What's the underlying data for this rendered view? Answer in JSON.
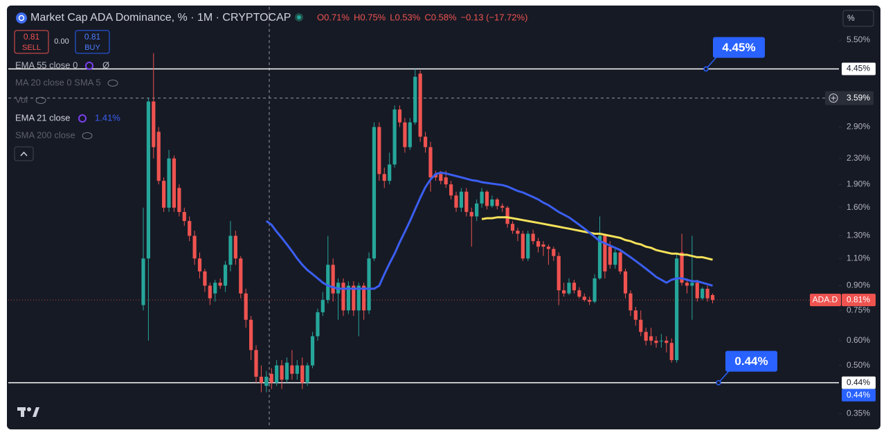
{
  "ui": {
    "sell_price": 0.81,
    "sell_label": "SELL",
    "spread": "0.00",
    "buy_price": 0.81,
    "buy_label": "BUY",
    "scale_mode": "%"
  },
  "chart_data": {
    "type": "candlestick",
    "title": "Market Cap ADA Dominance, % · 1M · CRYPTOCAP",
    "ohlc_legend": [
      "O0.71%",
      "H0.75%",
      "L0.53%",
      "C0.58%",
      "−0.13 (−17.72%)"
    ],
    "log_scale": true,
    "ylim": [
      0.32,
      7.03
    ],
    "yticks": [
      {
        "value": 5.5,
        "label": "5.50%"
      },
      {
        "value": 2.9,
        "label": "2.90%"
      },
      {
        "value": 2.3,
        "label": "2.30%"
      },
      {
        "value": 1.9,
        "label": "1.90%"
      },
      {
        "value": 1.6,
        "label": "1.60%"
      },
      {
        "value": 1.3,
        "label": "1.30%"
      },
      {
        "value": 1.1,
        "label": "1.10%"
      },
      {
        "value": 0.9,
        "label": "0.90%"
      },
      {
        "value": 0.75,
        "label": "0.75%"
      },
      {
        "value": 0.6,
        "label": "0.60%"
      },
      {
        "value": 0.5,
        "label": "0.50%"
      },
      {
        "value": 0.35,
        "label": "0.35%"
      }
    ],
    "up_color": "#26a69a",
    "down_color": "#ef5350",
    "open": [
      0.78,
      1.1,
      3.5,
      2.8,
      1.95,
      1.6,
      2.3,
      1.85,
      1.55,
      1.45,
      1.3,
      1.1,
      1.0,
      0.9,
      0.85,
      0.92,
      0.9,
      1.05,
      1.3,
      1.1,
      0.85,
      0.7,
      0.56,
      0.46,
      0.43,
      0.47,
      0.44,
      0.5,
      0.45,
      0.5,
      0.47,
      0.5,
      0.44,
      0.5,
      0.62,
      0.74,
      0.81,
      1.05,
      0.85,
      0.92,
      0.75,
      0.9,
      0.75,
      0.9,
      0.75,
      1.1,
      2.9,
      2.05,
      1.95,
      2.2,
      3.3,
      3.0,
      2.5,
      3.0,
      4.3,
      2.7,
      2.5,
      2.05,
      2.05,
      2.0,
      1.9,
      1.75,
      1.6,
      1.8,
      1.55,
      1.5,
      1.65,
      1.8,
      1.62,
      1.7,
      1.62,
      1.6,
      1.42,
      1.35,
      1.32,
      1.1,
      1.32,
      1.25,
      1.22,
      1.2,
      1.18,
      1.12,
      0.87,
      0.85,
      0.92,
      0.87,
      0.83,
      0.81,
      0.8,
      0.95,
      1.3,
      1.2,
      1.05,
      1.15,
      1.0,
      0.85,
      0.75,
      0.7,
      0.64,
      0.62,
      0.6,
      0.6,
      0.6,
      0.59,
      0.52,
      1.15,
      0.92,
      0.9,
      0.92,
      0.82,
      0.88,
      0.84
    ],
    "high": [
      1.6,
      3.6,
      5.0,
      2.9,
      2.0,
      2.45,
      2.35,
      1.9,
      1.6,
      1.5,
      1.35,
      1.15,
      1.02,
      0.92,
      0.94,
      0.95,
      1.08,
      1.45,
      1.35,
      1.12,
      0.88,
      0.72,
      0.58,
      0.5,
      0.48,
      0.49,
      0.52,
      0.52,
      0.53,
      0.56,
      0.52,
      0.53,
      0.51,
      0.64,
      0.76,
      0.86,
      1.3,
      1.1,
      0.95,
      0.95,
      0.93,
      0.93,
      0.92,
      0.92,
      1.15,
      3.0,
      3.0,
      2.15,
      2.4,
      3.4,
      3.4,
      3.1,
      3.1,
      4.45,
      4.4,
      2.8,
      2.6,
      2.1,
      2.1,
      2.1,
      1.95,
      1.8,
      1.85,
      1.85,
      1.6,
      1.7,
      1.85,
      1.82,
      1.75,
      1.72,
      1.65,
      1.62,
      1.45,
      1.38,
      1.35,
      1.35,
      1.36,
      1.28,
      1.25,
      1.22,
      1.2,
      1.15,
      0.92,
      0.95,
      0.94,
      0.89,
      0.85,
      0.83,
      0.98,
      1.5,
      1.32,
      1.25,
      1.18,
      1.18,
      1.02,
      0.87,
      0.77,
      0.75,
      0.66,
      0.66,
      0.62,
      0.63,
      0.62,
      0.61,
      1.15,
      1.32,
      0.95,
      1.3,
      0.94,
      0.89,
      0.9,
      0.85
    ],
    "low": [
      0.75,
      0.6,
      2.3,
      1.9,
      1.55,
      1.55,
      1.55,
      1.5,
      1.4,
      1.25,
      1.05,
      0.95,
      0.86,
      0.78,
      0.8,
      0.88,
      0.86,
      1.0,
      1.05,
      0.82,
      0.66,
      0.52,
      0.44,
      0.41,
      0.41,
      0.42,
      0.43,
      0.42,
      0.44,
      0.45,
      0.45,
      0.42,
      0.43,
      0.49,
      0.6,
      0.72,
      0.79,
      0.8,
      0.7,
      0.72,
      0.73,
      0.72,
      0.62,
      0.7,
      0.73,
      1.08,
      1.95,
      1.85,
      1.9,
      2.15,
      2.9,
      2.4,
      2.45,
      2.95,
      2.6,
      2.4,
      1.8,
      1.95,
      1.9,
      1.85,
      1.7,
      1.55,
      1.55,
      1.5,
      1.2,
      1.45,
      1.6,
      1.58,
      1.6,
      1.58,
      1.55,
      1.38,
      1.32,
      1.25,
      1.08,
      1.08,
      1.22,
      1.15,
      1.12,
      1.05,
      1.08,
      0.78,
      0.83,
      0.84,
      0.85,
      0.82,
      0.8,
      0.78,
      0.79,
      0.94,
      0.95,
      1.02,
      1.02,
      0.98,
      0.82,
      0.72,
      0.67,
      0.62,
      0.58,
      0.58,
      0.57,
      0.57,
      0.55,
      0.51,
      0.51,
      0.9,
      0.85,
      0.7,
      0.8,
      0.81,
      0.8,
      0.79
    ],
    "close": [
      1.1,
      3.5,
      2.5,
      1.95,
      1.6,
      2.3,
      1.6,
      1.55,
      1.45,
      1.3,
      1.1,
      1.0,
      0.9,
      0.82,
      0.92,
      0.9,
      1.05,
      1.3,
      1.1,
      0.85,
      0.7,
      0.56,
      0.46,
      0.44,
      0.46,
      0.44,
      0.5,
      0.45,
      0.51,
      0.47,
      0.5,
      0.44,
      0.5,
      0.62,
      0.74,
      0.81,
      1.05,
      0.85,
      0.92,
      0.75,
      0.9,
      0.75,
      0.9,
      0.75,
      1.1,
      2.9,
      2.05,
      1.95,
      2.2,
      3.3,
      3.0,
      2.5,
      3.0,
      4.2,
      2.7,
      2.5,
      2.0,
      2.0,
      1.95,
      1.9,
      1.75,
      1.6,
      1.8,
      1.55,
      1.5,
      1.65,
      1.8,
      1.62,
      1.7,
      1.62,
      1.6,
      1.42,
      1.35,
      1.32,
      1.1,
      1.32,
      1.25,
      1.2,
      1.2,
      1.18,
      1.12,
      0.87,
      0.85,
      0.92,
      0.87,
      0.83,
      0.81,
      0.8,
      0.95,
      1.3,
      1.0,
      1.05,
      1.15,
      1.0,
      0.85,
      0.75,
      0.7,
      0.64,
      0.6,
      0.6,
      0.59,
      0.6,
      0.59,
      0.52,
      1.1,
      0.92,
      0.9,
      0.92,
      0.82,
      0.88,
      0.82,
      0.81
    ],
    "series": [
      {
        "name": "EMA 55 close 0",
        "last_value": "Ø",
        "color": "#f5e15a",
        "values": [
          null,
          null,
          null,
          null,
          null,
          null,
          null,
          null,
          null,
          null,
          null,
          null,
          null,
          null,
          null,
          null,
          null,
          null,
          null,
          null,
          null,
          null,
          null,
          null,
          null,
          null,
          null,
          null,
          null,
          null,
          null,
          null,
          null,
          null,
          null,
          null,
          null,
          null,
          null,
          null,
          null,
          null,
          null,
          null,
          null,
          null,
          null,
          null,
          null,
          null,
          null,
          null,
          null,
          null,
          null,
          null,
          null,
          null,
          null,
          null,
          null,
          null,
          null,
          null,
          null,
          null,
          1.47,
          1.48,
          1.48,
          1.49,
          1.49,
          1.49,
          1.48,
          1.47,
          1.46,
          1.45,
          1.44,
          1.43,
          1.42,
          1.41,
          1.4,
          1.39,
          1.38,
          1.37,
          1.36,
          1.35,
          1.34,
          1.33,
          1.32,
          1.32,
          1.31,
          1.3,
          1.29,
          1.28,
          1.26,
          1.25,
          1.23,
          1.22,
          1.2,
          1.19,
          1.17,
          1.16,
          1.15,
          1.14,
          1.14,
          1.13,
          1.13,
          1.12,
          1.11,
          1.11,
          1.1,
          1.09
        ]
      },
      {
        "name": "EMA 21 close",
        "last_value": "1.41%",
        "color": "#3b5ff2",
        "values": [
          null,
          null,
          null,
          null,
          null,
          null,
          null,
          null,
          null,
          null,
          null,
          null,
          null,
          null,
          null,
          null,
          null,
          null,
          null,
          null,
          null,
          null,
          null,
          null,
          1.45,
          1.41,
          1.34,
          1.28,
          1.22,
          1.16,
          1.1,
          1.05,
          1.01,
          0.98,
          0.95,
          0.92,
          0.9,
          0.89,
          0.88,
          0.88,
          0.88,
          0.88,
          0.88,
          0.88,
          0.88,
          0.88,
          0.9,
          0.98,
          1.06,
          1.14,
          1.24,
          1.34,
          1.45,
          1.58,
          1.72,
          1.86,
          1.97,
          2.05,
          2.07,
          2.06,
          2.04,
          2.02,
          2.0,
          1.98,
          1.96,
          1.95,
          1.93,
          1.92,
          1.91,
          1.9,
          1.89,
          1.87,
          1.84,
          1.81,
          1.79,
          1.76,
          1.73,
          1.7,
          1.66,
          1.63,
          1.59,
          1.55,
          1.52,
          1.49,
          1.45,
          1.41,
          1.37,
          1.33,
          1.29,
          1.25,
          1.23,
          1.21,
          1.19,
          1.17,
          1.14,
          1.11,
          1.08,
          1.05,
          1.02,
          0.99,
          0.96,
          0.94,
          0.92,
          0.94,
          0.95,
          0.95,
          0.94,
          0.93,
          0.93,
          0.92,
          0.91,
          0.9
        ]
      }
    ],
    "hidden_indicators": [
      "MA 20 close 0 SMA 5",
      "Vol",
      "SMA 200 close"
    ],
    "levels": [
      {
        "value": 4.45,
        "label": "4.45%"
      },
      {
        "value": 0.44,
        "label": "0.44%"
      }
    ],
    "crosshair": {
      "value": 3.59,
      "label": "3.59%"
    },
    "last_price": {
      "symbol": "ADA.D",
      "value": 0.81,
      "label": "0.81%"
    }
  }
}
